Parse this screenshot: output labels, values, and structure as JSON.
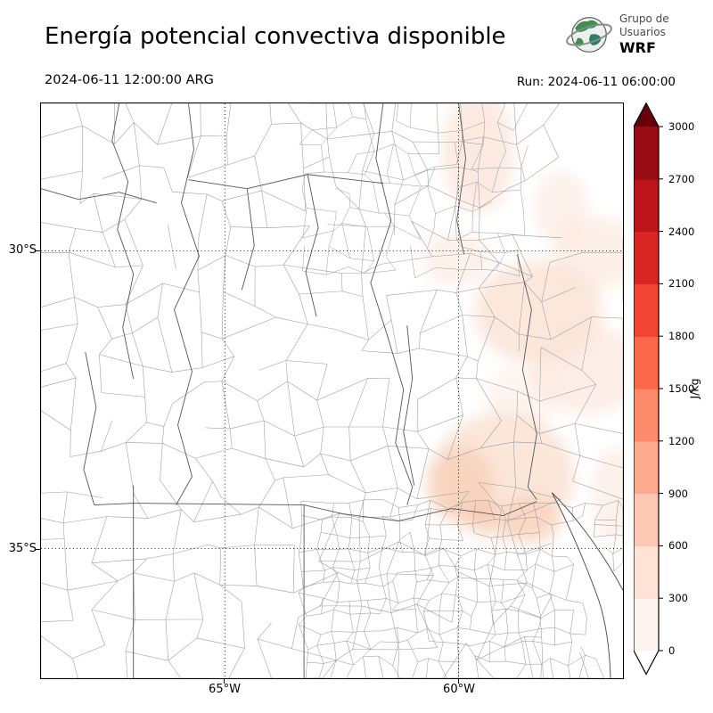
{
  "header": {
    "title": "Energía potencial convectiva disponible",
    "valid_time": "2024-06-11 12:00:00 ARG",
    "run_label": "Run: 2024-06-11 06:00:00",
    "logo": {
      "line1": "Grupo de",
      "line2": "Usuarios",
      "line3": "WRF"
    }
  },
  "map": {
    "lat_labels": [
      "30°S",
      "35°S"
    ],
    "lon_labels": [
      "65°W",
      "60°W"
    ]
  },
  "colorbar": {
    "unit": "J/kg",
    "ticks": [
      "0",
      "300",
      "600",
      "900",
      "1200",
      "1500",
      "1800",
      "2100",
      "2400",
      "2700",
      "3000"
    ],
    "colors": [
      "#fff5f0",
      "#fee3d6",
      "#fdc9b4",
      "#fcaa8e",
      "#fc8a6b",
      "#fb694a",
      "#f14432",
      "#d92523",
      "#bc141a",
      "#980c13"
    ],
    "over_color": "#67000d",
    "under_color": "#ffffff"
  },
  "shading": {
    "pale": "#fdf0e9",
    "low": "#fbe3d7",
    "mid": "#f9ddcd",
    "high": "#f6cdb4",
    "peak": "#f2b795"
  }
}
